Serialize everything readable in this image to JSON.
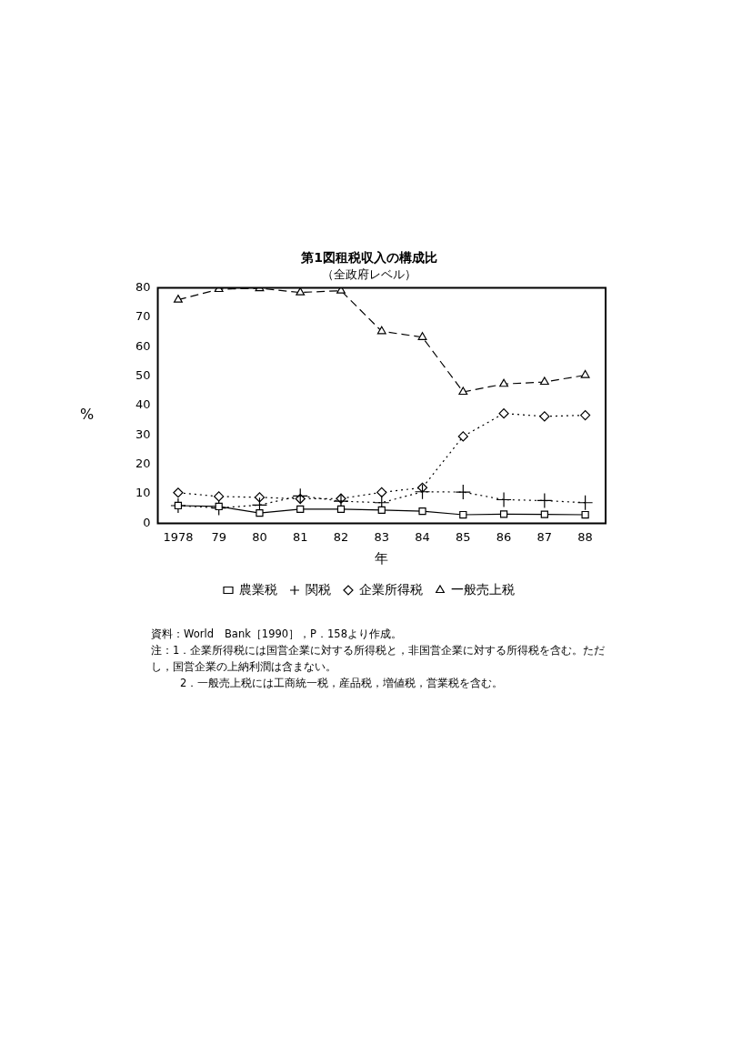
{
  "chart_data": {
    "type": "line",
    "title": "第1図租税収入の構成比",
    "subtitle": "（全政府レベル）",
    "xlabel": "年",
    "ylabel": "%",
    "categories": [
      "1978",
      "79",
      "80",
      "81",
      "82",
      "83",
      "84",
      "85",
      "86",
      "87",
      "88"
    ],
    "series": [
      {
        "name": "農業税",
        "color": "#000000",
        "marker": "square",
        "line_style": "solid",
        "values": [
          6,
          5.7,
          3.5,
          4.8,
          4.8,
          4.5,
          4.1,
          2.9,
          3.1,
          3,
          2.9
        ]
      },
      {
        "name": "関税",
        "color": "#000000",
        "marker": "cross",
        "line_style": "dotted",
        "values": [
          6,
          5.2,
          6.2,
          9.3,
          7.5,
          7,
          10.7,
          10.6,
          8,
          7.7,
          7
        ]
      },
      {
        "name": "企業所得税",
        "color": "#000000",
        "marker": "diamond",
        "line_style": "dotted",
        "values": [
          10.4,
          9.1,
          8.8,
          8.3,
          8.4,
          10.5,
          12.1,
          29.5,
          37.3,
          36.3,
          36.7
        ]
      },
      {
        "name": "一般売上税",
        "color": "#000000",
        "marker": "triangle",
        "line_style": "dashed",
        "values": [
          75.9,
          79.5,
          79.8,
          78.4,
          79,
          65.2,
          63.2,
          44.6,
          47.3,
          48,
          50.3
        ]
      }
    ],
    "ylim": [
      0,
      80
    ],
    "yticks": [
      0,
      10,
      20,
      30,
      40,
      50,
      60,
      70,
      80
    ],
    "grid": false,
    "legend": "bottom",
    "annotations": [
      "資料：World　Bank［1990］，P．158より作成。",
      "注：1．企業所得税には国営企業に対する所得税と，非国営企業に対する所得税を含む。ただし，国営企業の上納利潤は含まない。",
      "2．一般売上税には工商統一税，産品税，増値税，営業税を含む。"
    ]
  }
}
